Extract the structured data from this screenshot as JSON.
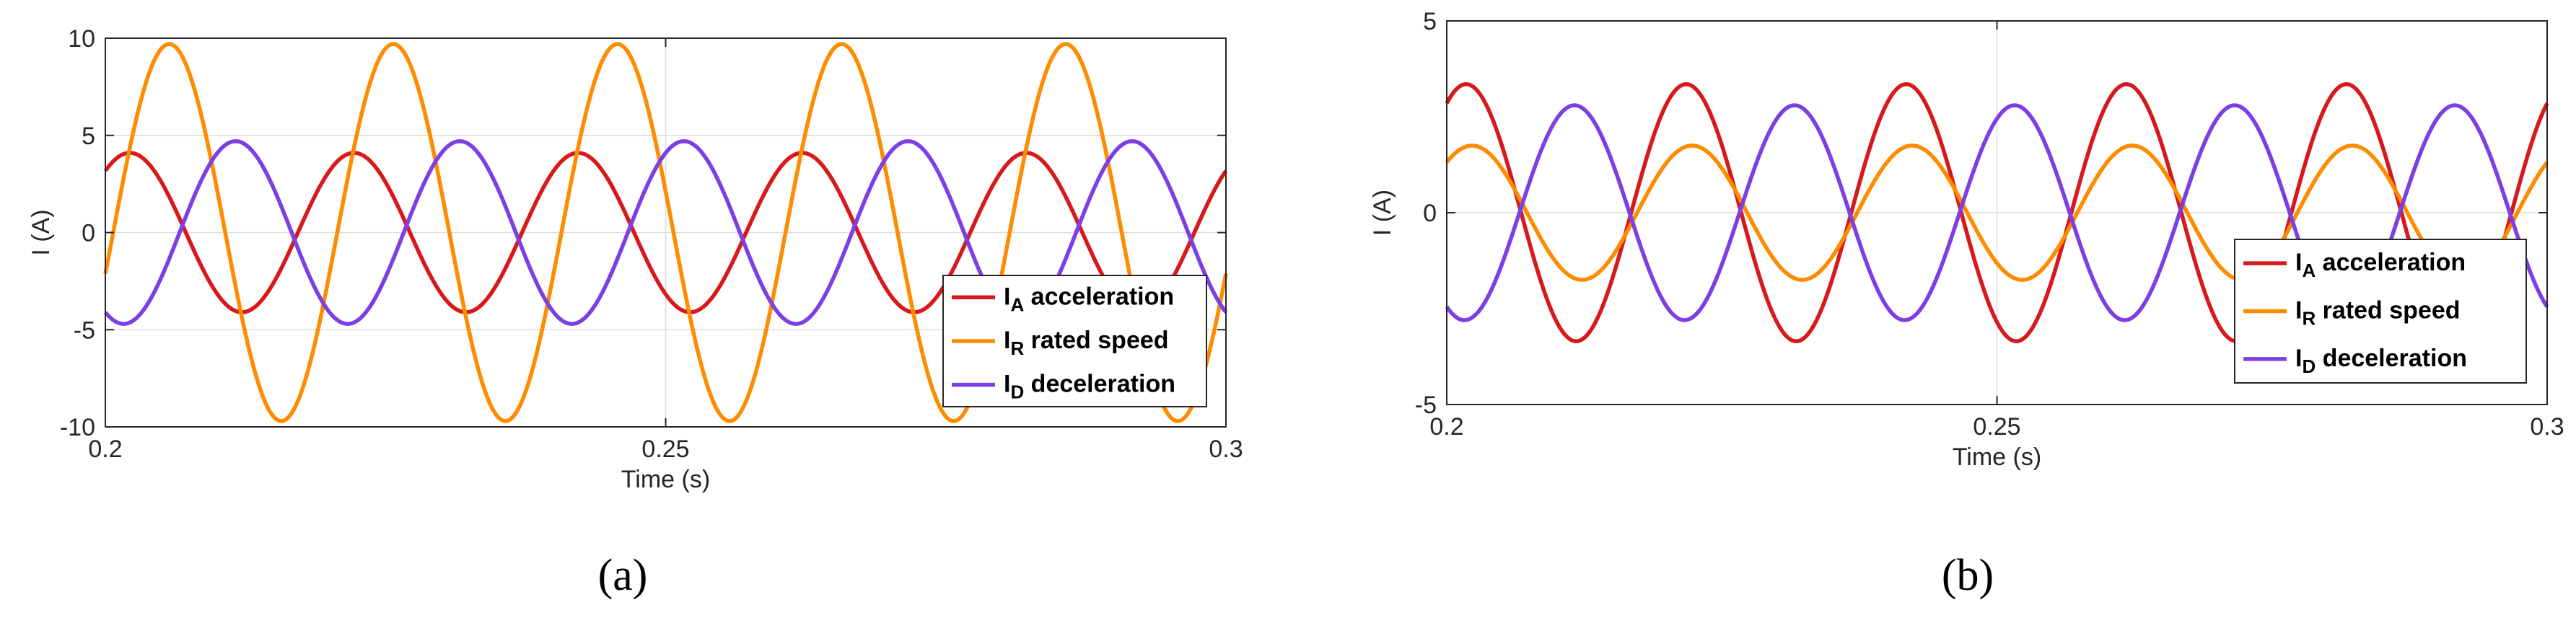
{
  "chart_data": [
    {
      "type": "line",
      "panel_label": "(a)",
      "xlabel": "Time (s)",
      "ylabel": "I (A)",
      "xlim": [
        0.2,
        0.3
      ],
      "ylim": [
        -10,
        10
      ],
      "x_ticks": [
        "0.2",
        "0.25",
        "0.3"
      ],
      "y_ticks": [
        "10",
        "5",
        "0",
        "-5",
        "-10"
      ],
      "grid": true,
      "legend_position": "bottom-right",
      "series": [
        {
          "sub": "A",
          "desc": "acceleration",
          "color": "#d7191c",
          "amplitude": 4.1,
          "frequency_hz": 50,
          "phase_deg": 50.7
        },
        {
          "sub": "R",
          "desc": "rated speed",
          "color": "#ff8c00",
          "amplitude": 9.7,
          "frequency_hz": 50,
          "phase_deg": -12.6
        },
        {
          "sub": "D",
          "desc": "deceleration",
          "color": "#7b3fe4",
          "amplitude": 4.7,
          "frequency_hz": 50,
          "phase_deg": -119.3
        }
      ]
    },
    {
      "type": "line",
      "panel_label": "(b)",
      "xlabel": "Time (s)",
      "ylabel": "I (A)",
      "xlim": [
        0.2,
        0.3
      ],
      "ylim": [
        -5,
        5
      ],
      "x_ticks": [
        "0.2",
        "0.25",
        "0.3"
      ],
      "y_ticks": [
        "5",
        "0",
        "-5"
      ],
      "grid": true,
      "legend_position": "bottom-right",
      "series": [
        {
          "sub": "A",
          "desc": "acceleration",
          "color": "#d7191c",
          "amplitude": 3.35,
          "frequency_hz": 50,
          "phase_deg": 58.3
        },
        {
          "sub": "R",
          "desc": "rated speed",
          "color": "#ff8c00",
          "amplitude": 1.75,
          "frequency_hz": 50,
          "phase_deg": 48.6
        },
        {
          "sub": "D",
          "desc": "deceleration",
          "color": "#7b3fe4",
          "amplitude": 2.8,
          "frequency_hz": 50,
          "phase_deg": -118.9
        }
      ]
    }
  ]
}
